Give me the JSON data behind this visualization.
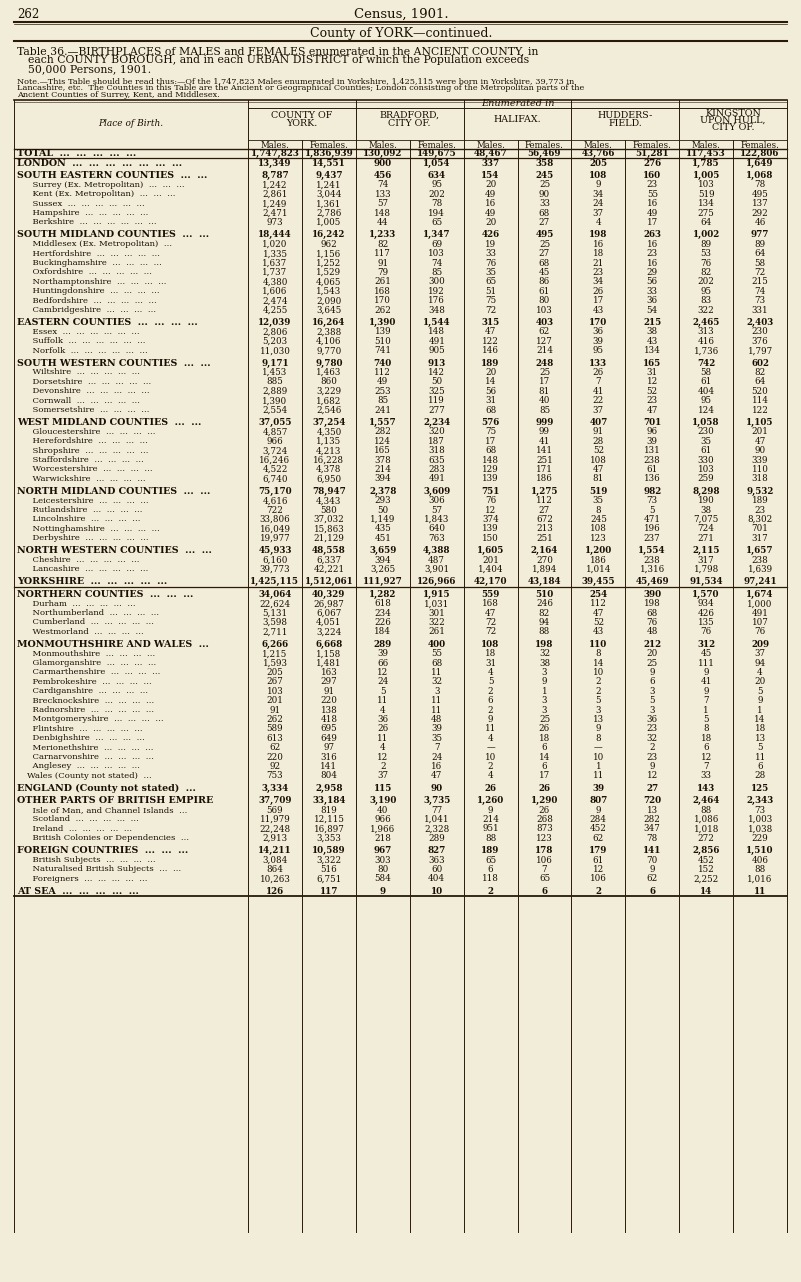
{
  "page_num": "262",
  "census_year": "Census, 1901.",
  "county_title": "County of YORK—continued.",
  "col_headers": [
    "COUNTY OF\nYORK.",
    "BRADFORD,\nCITY OF.",
    "HALIFAX.",
    "HUDDERS-\nFIELD.",
    "KINGSTON\nUPON HULL,\nCITY OF."
  ],
  "sub_headers": [
    "Males.",
    "Females.",
    "Males.",
    "Females.",
    "Males.",
    "Females.",
    "Males.",
    "Females.",
    "Males.",
    "Females."
  ],
  "rows": [
    [
      "TOTAL  ...  ...  ...  ...  ...",
      true,
      "1,747,823",
      "1,836,939",
      "130,092",
      "149,675",
      "48,467",
      "56,469",
      "43,766",
      "51,281",
      "117,453",
      "122,806"
    ],
    [
      "LONDON  ...  ...  ...  ...  ...  ...  ...",
      true,
      "13,349",
      "14,551",
      "900",
      "1,054",
      "337",
      "358",
      "205",
      "276",
      "1,785",
      "1,649"
    ],
    [
      "",
      false,
      "",
      "",
      "",
      "",
      "",
      "",
      "",
      "",
      "",
      ""
    ],
    [
      "SOUTH EASTERN COUNTIES  ...  ...",
      true,
      "8,787",
      "9,437",
      "456",
      "634",
      "154",
      "245",
      "108",
      "160",
      "1,005",
      "1,068"
    ],
    [
      "  Surrey (Ex. Metropolitan)  ...  ...  ...",
      false,
      "1,242",
      "1,241",
      "74",
      "95",
      "20",
      "25",
      "9",
      "23",
      "103",
      "78"
    ],
    [
      "  Kent (Ex. Metropolitan)  ...  ...  ...",
      false,
      "2,861",
      "3,044",
      "133",
      "202",
      "49",
      "90",
      "34",
      "55",
      "519",
      "495"
    ],
    [
      "  Sussex  ...  ...  ...  ...  ...  ...",
      false,
      "1,249",
      "1,361",
      "57",
      "78",
      "16",
      "33",
      "24",
      "16",
      "134",
      "137"
    ],
    [
      "  Hampshire  ...  ...  ...  ...  ...",
      false,
      "2,471",
      "2,786",
      "148",
      "194",
      "49",
      "68",
      "37",
      "49",
      "275",
      "292"
    ],
    [
      "  Berkshire  ...  ...  ...  ...  ...  ...",
      false,
      "973",
      "1,005",
      "44",
      "65",
      "20",
      "27",
      "4",
      "17",
      "64",
      "46"
    ],
    [
      "",
      false,
      "",
      "",
      "",
      "",
      "",
      "",
      "",
      "",
      "",
      ""
    ],
    [
      "SOUTH MIDLAND COUNTIES  ...  ...",
      true,
      "18,444",
      "16,242",
      "1,233",
      "1,347",
      "426",
      "495",
      "198",
      "263",
      "1,002",
      "977"
    ],
    [
      "  Middlesex (Ex. Metropolitan)  ...",
      false,
      "1,020",
      "962",
      "82",
      "69",
      "19",
      "25",
      "16",
      "16",
      "89",
      "89"
    ],
    [
      "  Hertfordshire  ...  ...  ...  ...  ...",
      false,
      "1,335",
      "1,156",
      "117",
      "103",
      "33",
      "27",
      "18",
      "23",
      "53",
      "64"
    ],
    [
      "  Buckinghamshire  ...  ...  ...  ...",
      false,
      "1,637",
      "1,252",
      "91",
      "74",
      "76",
      "68",
      "21",
      "16",
      "76",
      "58"
    ],
    [
      "  Oxfordshire  ...  ...  ...  ...  ...",
      false,
      "1,737",
      "1,529",
      "79",
      "85",
      "35",
      "45",
      "23",
      "29",
      "82",
      "72"
    ],
    [
      "  Northamptonshire  ...  ...  ...  ...",
      false,
      "4,380",
      "4,065",
      "261",
      "300",
      "65",
      "86",
      "34",
      "56",
      "202",
      "215"
    ],
    [
      "  Huntingdonshire  ...  ...  ...  ...",
      false,
      "1,606",
      "1,543",
      "168",
      "192",
      "51",
      "61",
      "26",
      "33",
      "95",
      "74"
    ],
    [
      "  Bedfordshire  ...  ...  ...  ...  ...",
      false,
      "2,474",
      "2,090",
      "170",
      "176",
      "75",
      "80",
      "17",
      "36",
      "83",
      "73"
    ],
    [
      "  Cambridgeshire  ...  ...  ...  ...",
      false,
      "4,255",
      "3,645",
      "262",
      "348",
      "72",
      "103",
      "43",
      "54",
      "322",
      "331"
    ],
    [
      "",
      false,
      "",
      "",
      "",
      "",
      "",
      "",
      "",
      "",
      "",
      ""
    ],
    [
      "EASTERN COUNTIES  ...  ...  ...  ...",
      true,
      "12,039",
      "16,264",
      "1,390",
      "1,544",
      "315",
      "403",
      "170",
      "215",
      "2,465",
      "2,403"
    ],
    [
      "  Essex  ...  ...  ...  ...  ...  ...",
      false,
      "2,806",
      "2,388",
      "139",
      "148",
      "47",
      "62",
      "36",
      "38",
      "313",
      "230"
    ],
    [
      "  Suffolk  ...  ...  ...  ...  ...  ...",
      false,
      "5,203",
      "4,106",
      "510",
      "491",
      "122",
      "127",
      "39",
      "43",
      "416",
      "376"
    ],
    [
      "  Norfolk  ...  ...  ...  ...  ...  ...",
      false,
      "11,030",
      "9,770",
      "741",
      "905",
      "146",
      "214",
      "95",
      "134",
      "1,736",
      "1,797"
    ],
    [
      "",
      false,
      "",
      "",
      "",
      "",
      "",
      "",
      "",
      "",
      "",
      ""
    ],
    [
      "SOUTH WESTERN COUNTIES  ...  ...",
      true,
      "9,171",
      "9,780",
      "740",
      "913",
      "189",
      "248",
      "133",
      "165",
      "742",
      "602"
    ],
    [
      "  Wiltshire  ...  ...  ...  ...  ...",
      false,
      "1,453",
      "1,463",
      "112",
      "142",
      "20",
      "25",
      "26",
      "31",
      "58",
      "82"
    ],
    [
      "  Dorsetshire  ...  ...  ...  ...  ...",
      false,
      "885",
      "860",
      "49",
      "50",
      "14",
      "17",
      "7",
      "12",
      "61",
      "64"
    ],
    [
      "  Devonshire  ...  ...  ...  ...  ...",
      false,
      "2,889",
      "3,229",
      "253",
      "325",
      "56",
      "81",
      "41",
      "52",
      "404",
      "520"
    ],
    [
      "  Cornwall  ...  ...  ...  ...  ...",
      false,
      "1,390",
      "1,682",
      "85",
      "119",
      "31",
      "40",
      "22",
      "23",
      "95",
      "114"
    ],
    [
      "  Somersetshire  ...  ...  ...  ...",
      false,
      "2,554",
      "2,546",
      "241",
      "277",
      "68",
      "85",
      "37",
      "47",
      "124",
      "122"
    ],
    [
      "",
      false,
      "",
      "",
      "",
      "",
      "",
      "",
      "",
      "",
      "",
      ""
    ],
    [
      "WEST MIDLAND COUNTIES  ...  ...",
      true,
      "37,055",
      "37,254",
      "1,557",
      "2,234",
      "576",
      "999",
      "407",
      "701",
      "1,058",
      "1,105"
    ],
    [
      "  Gloucestershire  ...  ...  ...  ...",
      false,
      "4,857",
      "4,350",
      "282",
      "320",
      "75",
      "99",
      "91",
      "96",
      "230",
      "201"
    ],
    [
      "  Herefordshire  ...  ...  ...  ...",
      false,
      "966",
      "1,135",
      "124",
      "187",
      "17",
      "41",
      "28",
      "39",
      "35",
      "47"
    ],
    [
      "  Shropshire  ...  ...  ...  ...  ...",
      false,
      "3,724",
      "4,213",
      "165",
      "318",
      "68",
      "141",
      "52",
      "131",
      "61",
      "90"
    ],
    [
      "  Staffordshire  ...  ...  ...  ...",
      false,
      "16,246",
      "16,228",
      "378",
      "635",
      "148",
      "251",
      "108",
      "238",
      "330",
      "339"
    ],
    [
      "  Worcestershire  ...  ...  ...  ...",
      false,
      "4,522",
      "4,378",
      "214",
      "283",
      "129",
      "171",
      "47",
      "61",
      "103",
      "110"
    ],
    [
      "  Warwickshire  ...  ...  ...  ...",
      false,
      "6,740",
      "6,950",
      "394",
      "491",
      "139",
      "186",
      "81",
      "136",
      "259",
      "318"
    ],
    [
      "",
      false,
      "",
      "",
      "",
      "",
      "",
      "",
      "",
      "",
      "",
      ""
    ],
    [
      "NORTH MIDLAND COUNTIES  ...  ...",
      true,
      "75,170",
      "78,947",
      "2,378",
      "3,609",
      "751",
      "1,275",
      "519",
      "982",
      "8,298",
      "9,532"
    ],
    [
      "  Leicestershire  ...  ...  ...  ...",
      false,
      "4,616",
      "4,343",
      "293",
      "306",
      "76",
      "112",
      "35",
      "73",
      "190",
      "189"
    ],
    [
      "  Rutlandshire  ...  ...  ...  ...",
      false,
      "722",
      "580",
      "50",
      "57",
      "12",
      "27",
      "8",
      "5",
      "38",
      "23"
    ],
    [
      "  Lincolnshire  ...  ...  ...  ...",
      false,
      "33,806",
      "37,032",
      "1,149",
      "1,843",
      "374",
      "672",
      "245",
      "471",
      "7,075",
      "8,302"
    ],
    [
      "  Nottinghamshire  ...  ...  ...  ...",
      false,
      "16,049",
      "15,863",
      "435",
      "640",
      "139",
      "213",
      "108",
      "196",
      "724",
      "701"
    ],
    [
      "  Derbyshire  ...  ...  ...  ...  ...",
      false,
      "19,977",
      "21,129",
      "451",
      "763",
      "150",
      "251",
      "123",
      "237",
      "271",
      "317"
    ],
    [
      "",
      false,
      "",
      "",
      "",
      "",
      "",
      "",
      "",
      "",
      "",
      ""
    ],
    [
      "NORTH WESTERN COUNTIES  ...  ...",
      true,
      "45,933",
      "48,558",
      "3,659",
      "4,388",
      "1,605",
      "2,164",
      "1,200",
      "1,554",
      "2,115",
      "1,657"
    ],
    [
      "  Cheshire  ...  ...  ...  ...  ...",
      false,
      "6,160",
      "6,337",
      "394",
      "487",
      "201",
      "270",
      "186",
      "238",
      "317",
      "238"
    ],
    [
      "  Lancashire  ...  ...  ...  ...  ...",
      false,
      "39,773",
      "42,221",
      "3,265",
      "3,901",
      "1,404",
      "1,894",
      "1,014",
      "1,316",
      "1,798",
      "1,639"
    ],
    [
      "",
      false,
      "",
      "",
      "",
      "",
      "",
      "",
      "",
      "",
      "",
      ""
    ],
    [
      "YORKSHIRE  ...  ...  ...  ...  ...",
      true,
      "1,425,115",
      "1,512,061",
      "111,927",
      "126,966",
      "42,170",
      "43,184",
      "39,455",
      "45,469",
      "91,534",
      "97,241"
    ],
    [
      "",
      false,
      "",
      "",
      "",
      "",
      "",
      "",
      "",
      "",
      "",
      ""
    ],
    [
      "NORTHERN COUNTIES  ...  ...  ...",
      true,
      "34,064",
      "40,329",
      "1,282",
      "1,915",
      "559",
      "510",
      "254",
      "390",
      "1,570",
      "1,674"
    ],
    [
      "  Durham  ...  ...  ...  ...  ...",
      false,
      "22,624",
      "26,987",
      "618",
      "1,031",
      "168",
      "246",
      "112",
      "198",
      "934",
      "1,000"
    ],
    [
      "  Northumberland  ...  ...  ...  ...",
      false,
      "5,131",
      "6,067",
      "234",
      "301",
      "47",
      "82",
      "47",
      "68",
      "426",
      "491"
    ],
    [
      "  Cumberland  ...  ...  ...  ...  ...",
      false,
      "3,598",
      "4,051",
      "226",
      "322",
      "72",
      "94",
      "52",
      "76",
      "135",
      "107"
    ],
    [
      "  Westmorland  ...  ...  ...  ...",
      false,
      "2,711",
      "3,224",
      "184",
      "261",
      "72",
      "88",
      "43",
      "48",
      "76",
      "76"
    ],
    [
      "",
      false,
      "",
      "",
      "",
      "",
      "",
      "",
      "",
      "",
      "",
      ""
    ],
    [
      "MONMOUTHSHIRE AND WALES  ...",
      true,
      "6,266",
      "6,668",
      "289",
      "400",
      "108",
      "198",
      "110",
      "212",
      "312",
      "209"
    ],
    [
      "  Monmouthshire  ...  ...  ...  ...",
      false,
      "1,215",
      "1,158",
      "39",
      "55",
      "18",
      "32",
      "8",
      "20",
      "45",
      "37"
    ],
    [
      "  Glamorganshire  ...  ...  ...  ...",
      false,
      "1,593",
      "1,481",
      "66",
      "68",
      "31",
      "38",
      "14",
      "25",
      "111",
      "94"
    ],
    [
      "  Carmarthenshire  ...  ...  ...  ...",
      false,
      "205",
      "163",
      "12",
      "11",
      "4",
      "3",
      "10",
      "9",
      "9",
      "4"
    ],
    [
      "  Pembrokeshire  ...  ...  ...  ...",
      false,
      "267",
      "297",
      "24",
      "32",
      "5",
      "9",
      "2",
      "6",
      "41",
      "20"
    ],
    [
      "  Cardiganshire  ...  ...  ...  ...",
      false,
      "103",
      "91",
      "5",
      "3",
      "2",
      "1",
      "2",
      "3",
      "9",
      "5"
    ],
    [
      "  Brecknockshire  ...  ...  ...  ...",
      false,
      "201",
      "220",
      "11",
      "11",
      "6",
      "3",
      "5",
      "5",
      "7",
      "9"
    ],
    [
      "  Radnorshire  ...  ...  ...  ...  ...",
      false,
      "91",
      "138",
      "4",
      "11",
      "2",
      "3",
      "3",
      "3",
      "1",
      "1"
    ],
    [
      "  Montgomeryshire  ...  ...  ...  ...",
      false,
      "262",
      "418",
      "36",
      "48",
      "9",
      "25",
      "13",
      "36",
      "5",
      "14"
    ],
    [
      "  Flintshire  ...  ...  ...  ...  ...",
      false,
      "589",
      "695",
      "26",
      "39",
      "11",
      "26",
      "9",
      "23",
      "8",
      "18"
    ],
    [
      "  Denbighshire  ...  ...  ...  ...",
      false,
      "613",
      "649",
      "11",
      "35",
      "4",
      "18",
      "8",
      "32",
      "18",
      "13"
    ],
    [
      "  Merionethshire  ...  ...  ...  ...",
      false,
      "62",
      "97",
      "4",
      "7",
      "—",
      "6",
      "—",
      "2",
      "6",
      "5"
    ],
    [
      "  Carnarvonshire  ...  ...  ...  ...",
      false,
      "220",
      "316",
      "12",
      "24",
      "10",
      "14",
      "10",
      "23",
      "12",
      "11"
    ],
    [
      "  Anglesey  ...  ...  ...  ...  ...",
      false,
      "92",
      "141",
      "2",
      "16",
      "2",
      "6",
      "1",
      "9",
      "7",
      "6"
    ],
    [
      "Wales (County not stated)  ...",
      false,
      "753",
      "804",
      "37",
      "47",
      "4",
      "17",
      "11",
      "12",
      "33",
      "28"
    ],
    [
      "",
      false,
      "",
      "",
      "",
      "",
      "",
      "",
      "",
      "",
      "",
      ""
    ],
    [
      "ENGLAND (County not stated)  ...",
      true,
      "3,334",
      "2,958",
      "115",
      "90",
      "26",
      "26",
      "39",
      "27",
      "143",
      "125"
    ],
    [
      "",
      false,
      "",
      "",
      "",
      "",
      "",
      "",
      "",
      "",
      "",
      ""
    ],
    [
      "OTHER PARTS OF BRITISH EMPIRE",
      true,
      "37,709",
      "33,184",
      "3,190",
      "3,735",
      "1,260",
      "1,290",
      "807",
      "720",
      "2,464",
      "2,343"
    ],
    [
      "  Isle of Man, and Channel Islands  ...",
      false,
      "569",
      "819",
      "40",
      "77",
      "9",
      "26",
      "9",
      "13",
      "88",
      "73"
    ],
    [
      "  Scotland  ...  ...  ...  ...  ...",
      false,
      "11,979",
      "12,115",
      "966",
      "1,041",
      "214",
      "268",
      "284",
      "282",
      "1,086",
      "1,003"
    ],
    [
      "  Ireland  ...  ...  ...  ...  ...",
      false,
      "22,248",
      "16,897",
      "1,966",
      "2,328",
      "951",
      "873",
      "452",
      "347",
      "1,018",
      "1,038"
    ],
    [
      "  British Colonies or Dependencies  ...",
      false,
      "2,913",
      "3,353",
      "218",
      "289",
      "88",
      "123",
      "62",
      "78",
      "272",
      "229"
    ],
    [
      "",
      false,
      "",
      "",
      "",
      "",
      "",
      "",
      "",
      "",
      "",
      ""
    ],
    [
      "FOREIGN COUNTRIES  ...  ...  ...",
      true,
      "14,211",
      "10,589",
      "967",
      "827",
      "189",
      "178",
      "179",
      "141",
      "2,856",
      "1,510"
    ],
    [
      "  British Subjects  ...  ...  ...  ...",
      false,
      "3,084",
      "3,322",
      "303",
      "363",
      "65",
      "106",
      "61",
      "70",
      "452",
      "406"
    ],
    [
      "  Naturalised British Subjects  ...  ...",
      false,
      "864",
      "516",
      "80",
      "60",
      "6",
      "7",
      "12",
      "9",
      "152",
      "88"
    ],
    [
      "  Foreigners  ...  ...  ...  ...  ...",
      false,
      "10,263",
      "6,751",
      "584",
      "404",
      "118",
      "65",
      "106",
      "62",
      "2,252",
      "1,016"
    ],
    [
      "",
      false,
      "",
      "",
      "",
      "",
      "",
      "",
      "",
      "",
      "",
      ""
    ],
    [
      "AT SEA  ...  ...  ...  ...  ...",
      true,
      "126",
      "117",
      "9",
      "10",
      "2",
      "6",
      "2",
      "6",
      "14",
      "11"
    ]
  ],
  "bg_color": "#f2edd8",
  "text_color": "#1a0e05",
  "line_color": "#2a1a08"
}
